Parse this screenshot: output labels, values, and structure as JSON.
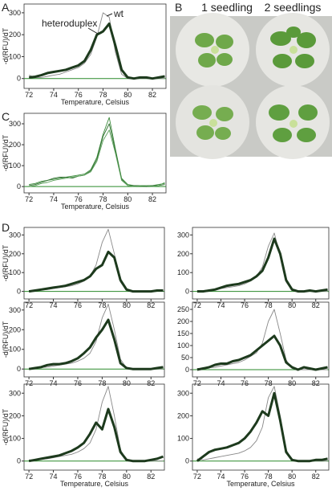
{
  "panel_labels": [
    "A",
    "B",
    "C",
    "D"
  ],
  "photo": {
    "labels": [
      "1 seedling",
      "2 seedlings"
    ]
  },
  "chart_data": [
    {
      "type": "line",
      "x_label": "Temperature, Celsius",
      "y_label": "-d(RFU)/dT",
      "annotations": [
        "heteroduplex",
        "wt"
      ],
      "x": [
        72,
        72.5,
        73,
        73.5,
        74,
        74.5,
        75,
        75.5,
        76,
        76.5,
        77,
        77.5,
        78,
        78.5,
        79,
        79.5,
        80,
        80.5,
        81,
        81.5,
        82,
        82.5,
        83
      ],
      "series": [
        {
          "color": "#888888",
          "line_width": 0.9,
          "values": [
            15,
            5,
            5,
            10,
            15,
            20,
            30,
            40,
            50,
            70,
            110,
            190,
            300,
            280,
            120,
            20,
            0,
            0,
            0,
            0,
            0,
            0,
            0
          ]
        },
        {
          "color": "#1d3a1d",
          "line_width": 3,
          "values": [
            5,
            8,
            15,
            25,
            30,
            35,
            40,
            50,
            60,
            80,
            130,
            200,
            215,
            250,
            150,
            40,
            5,
            0,
            5,
            5,
            0,
            5,
            10
          ]
        }
      ],
      "xlim": [
        71.6,
        83.1
      ],
      "ylim": [
        -45,
        340
      ],
      "xticks": [
        72,
        74,
        76,
        78,
        80,
        82
      ],
      "yticks": [
        0,
        100,
        200,
        300
      ]
    },
    {
      "type": "line",
      "x_label": "Temperature, Celsius",
      "y_label": "-d(RFU)/dT",
      "x": [
        72,
        72.5,
        73,
        73.5,
        74,
        74.5,
        75,
        75.5,
        76,
        76.5,
        77,
        77.5,
        78,
        78.5,
        79,
        79.5,
        80,
        80.5,
        81,
        81.5,
        82,
        82.5,
        83
      ],
      "series": [
        {
          "color": "#3c8a3c",
          "line_width": 0.9,
          "values": [
            10,
            15,
            25,
            30,
            35,
            40,
            45,
            50,
            55,
            60,
            80,
            140,
            250,
            330,
            180,
            40,
            10,
            5,
            0,
            5,
            5,
            10,
            15
          ]
        },
        {
          "color": "#2f6f2f",
          "line_width": 0.9,
          "values": [
            5,
            10,
            20,
            30,
            40,
            45,
            45,
            40,
            50,
            55,
            75,
            130,
            240,
            300,
            170,
            35,
            5,
            5,
            5,
            0,
            5,
            5,
            10
          ]
        },
        {
          "color": "#5aa05a",
          "line_width": 0.9,
          "values": [
            0,
            5,
            15,
            20,
            30,
            35,
            40,
            45,
            50,
            55,
            70,
            120,
            220,
            270,
            160,
            30,
            5,
            0,
            5,
            5,
            0,
            5,
            20
          ]
        }
      ],
      "xlim": [
        71.6,
        83.1
      ],
      "ylim": [
        -30,
        350
      ],
      "xticks": [
        72,
        74,
        76,
        78,
        80,
        82
      ],
      "yticks": [
        0,
        100,
        200,
        300
      ]
    },
    {
      "type": "line",
      "y_label": "-d(RFU)/dT",
      "x": [
        72,
        72.5,
        73,
        73.5,
        74,
        74.5,
        75,
        75.5,
        76,
        76.5,
        77,
        77.5,
        78,
        78.5,
        79,
        79.5,
        80,
        80.5,
        81,
        81.5,
        82,
        82.5,
        83
      ],
      "series": [
        {
          "color": "#888888",
          "line_width": 0.9,
          "values": [
            5,
            5,
            8,
            10,
            15,
            20,
            25,
            30,
            40,
            55,
            80,
            140,
            260,
            330,
            200,
            50,
            5,
            0,
            0,
            0,
            0,
            0,
            0
          ]
        },
        {
          "color": "#1d3a1d",
          "line_width": 3,
          "values": [
            0,
            5,
            10,
            15,
            20,
            25,
            30,
            40,
            50,
            60,
            80,
            120,
            140,
            210,
            180,
            60,
            10,
            0,
            0,
            0,
            0,
            5,
            5
          ]
        }
      ],
      "xlim": [
        71.6,
        83.1
      ],
      "ylim": [
        -40,
        340
      ],
      "xticks": [
        72,
        74,
        76,
        78,
        80,
        82
      ],
      "yticks": [
        0,
        100,
        200,
        300
      ]
    },
    {
      "type": "line",
      "x": [
        72,
        72.5,
        73,
        73.5,
        74,
        74.5,
        75,
        75.5,
        76,
        76.5,
        77,
        77.5,
        78,
        78.5,
        79,
        79.5,
        80,
        80.5,
        81,
        81.5,
        82,
        82.5,
        83
      ],
      "series": [
        {
          "color": "#888888",
          "line_width": 0.9,
          "values": [
            5,
            5,
            8,
            10,
            15,
            20,
            25,
            30,
            40,
            55,
            80,
            130,
            240,
            310,
            190,
            50,
            5,
            0,
            0,
            0,
            0,
            0,
            0
          ]
        },
        {
          "color": "#1d3a1d",
          "line_width": 3,
          "values": [
            0,
            0,
            5,
            10,
            20,
            30,
            35,
            40,
            50,
            60,
            80,
            110,
            180,
            280,
            200,
            60,
            10,
            0,
            0,
            5,
            0,
            5,
            10
          ]
        }
      ],
      "xlim": [
        71.6,
        83.1
      ],
      "ylim": [
        -40,
        340
      ],
      "xticks": [
        72,
        74,
        76,
        78,
        80,
        82
      ],
      "yticks": [
        0,
        100,
        200,
        300
      ]
    },
    {
      "type": "line",
      "y_label": "-d(RFU)/dT",
      "x": [
        72,
        72.5,
        73,
        73.5,
        74,
        74.5,
        75,
        75.5,
        76,
        76.5,
        77,
        77.5,
        78,
        78.5,
        79,
        79.5,
        80,
        80.5,
        81,
        81.5,
        82,
        82.5,
        83
      ],
      "series": [
        {
          "color": "#888888",
          "line_width": 0.9,
          "values": [
            5,
            5,
            8,
            10,
            15,
            20,
            25,
            30,
            40,
            55,
            80,
            140,
            260,
            330,
            200,
            50,
            5,
            0,
            0,
            0,
            0,
            0,
            0
          ]
        },
        {
          "color": "#1d3a1d",
          "line_width": 3,
          "values": [
            0,
            5,
            10,
            20,
            25,
            25,
            30,
            40,
            55,
            80,
            110,
            160,
            200,
            250,
            150,
            30,
            5,
            0,
            0,
            0,
            0,
            5,
            10
          ]
        }
      ],
      "xlim": [
        71.6,
        83.1
      ],
      "ylim": [
        -40,
        340
      ],
      "xticks": [
        72,
        74,
        76,
        78,
        80,
        82
      ],
      "yticks": [
        0,
        100,
        200,
        300
      ]
    },
    {
      "type": "line",
      "x": [
        72,
        72.5,
        73,
        73.5,
        74,
        74.5,
        75,
        75.5,
        76,
        76.5,
        77,
        77.5,
        78,
        78.5,
        79,
        79.5,
        80,
        80.5,
        81,
        81.5,
        82,
        82.5,
        83
      ],
      "series": [
        {
          "color": "#888888",
          "line_width": 0.9,
          "values": [
            5,
            5,
            8,
            10,
            15,
            20,
            25,
            30,
            40,
            55,
            70,
            110,
            200,
            250,
            150,
            40,
            5,
            0,
            0,
            0,
            0,
            0,
            0
          ]
        },
        {
          "color": "#1d3a1d",
          "line_width": 3,
          "values": [
            0,
            5,
            10,
            20,
            25,
            25,
            35,
            40,
            50,
            60,
            80,
            100,
            120,
            140,
            100,
            30,
            10,
            0,
            10,
            5,
            0,
            5,
            10
          ]
        }
      ],
      "xlim": [
        71.6,
        83.1
      ],
      "ylim": [
        -30,
        280
      ],
      "xticks": [
        72,
        74,
        76,
        78,
        80,
        82
      ],
      "yticks": [
        0,
        50,
        100,
        150,
        200,
        250
      ]
    },
    {
      "type": "line",
      "x_label": "Temperature, Celsius",
      "y_label": "-d(RFU)/dT",
      "x": [
        72,
        72.5,
        73,
        73.5,
        74,
        74.5,
        75,
        75.5,
        76,
        76.5,
        77,
        77.5,
        78,
        78.5,
        79,
        79.5,
        80,
        80.5,
        81,
        81.5,
        82,
        82.5,
        83
      ],
      "series": [
        {
          "color": "#888888",
          "line_width": 0.9,
          "values": [
            5,
            5,
            8,
            10,
            15,
            20,
            25,
            30,
            40,
            55,
            80,
            140,
            260,
            330,
            200,
            50,
            5,
            0,
            0,
            0,
            0,
            0,
            0
          ]
        },
        {
          "color": "#1d3a1d",
          "line_width": 3,
          "values": [
            0,
            5,
            10,
            15,
            20,
            25,
            35,
            45,
            60,
            80,
            120,
            170,
            140,
            230,
            150,
            40,
            5,
            0,
            0,
            0,
            5,
            10,
            20
          ]
        }
      ],
      "xlim": [
        71.6,
        83.1
      ],
      "ylim": [
        -40,
        340
      ],
      "xticks": [
        72,
        74,
        76,
        78,
        80,
        82
      ],
      "yticks": [
        0,
        100,
        200,
        300
      ]
    },
    {
      "type": "line",
      "x_label": "Temperature, Celsius",
      "x": [
        72,
        72.5,
        73,
        73.5,
        74,
        74.5,
        75,
        75.5,
        76,
        76.5,
        77,
        77.5,
        78,
        78.5,
        79,
        79.5,
        80,
        80.5,
        81,
        81.5,
        82,
        82.5,
        83
      ],
      "series": [
        {
          "color": "#888888",
          "line_width": 0.9,
          "values": [
            10,
            5,
            10,
            15,
            20,
            25,
            30,
            35,
            45,
            60,
            90,
            150,
            280,
            330,
            200,
            50,
            5,
            0,
            0,
            0,
            0,
            0,
            0
          ]
        },
        {
          "color": "#1d3a1d",
          "line_width": 3,
          "values": [
            0,
            20,
            40,
            50,
            55,
            60,
            70,
            80,
            100,
            130,
            170,
            220,
            200,
            300,
            180,
            40,
            5,
            0,
            0,
            0,
            5,
            5,
            10
          ]
        }
      ],
      "xlim": [
        71.6,
        83.1
      ],
      "ylim": [
        -40,
        340
      ],
      "xticks": [
        72,
        74,
        76,
        78,
        80,
        82
      ],
      "yticks": [
        0,
        100,
        200,
        300
      ]
    }
  ]
}
